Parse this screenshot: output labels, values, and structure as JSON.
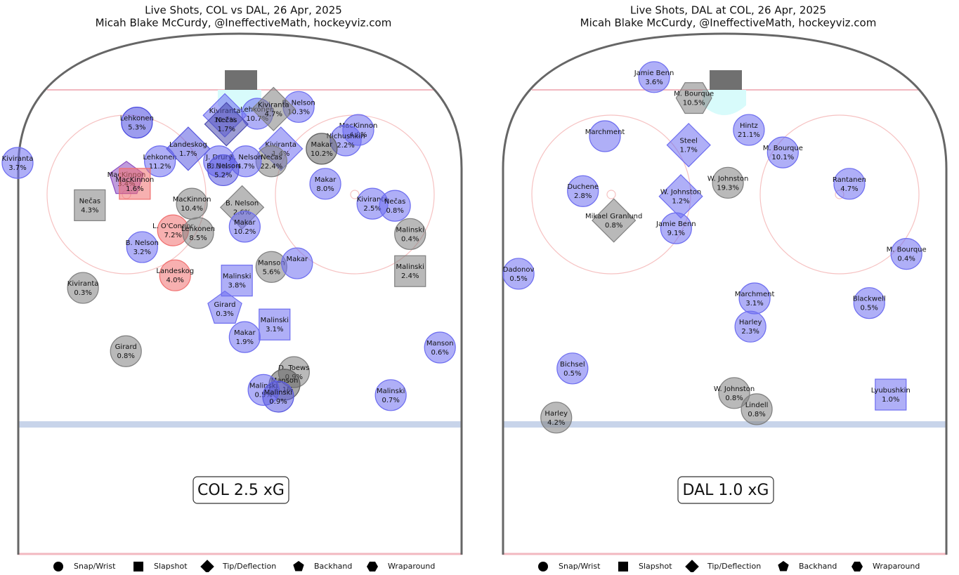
{
  "chart_data": [
    {
      "type": "scatter",
      "title": "Live Shots, COL vs DAL, 26 Apr, 2025",
      "subtitle": "Micah Blake McCurdy, @IneffectiveMath, hockeyviz.com",
      "total_label": "COL 2.5 xG",
      "legend": [
        {
          "shape": "circle",
          "label": "Snap/Wrist"
        },
        {
          "shape": "square",
          "label": "Slapshot"
        },
        {
          "shape": "diamond",
          "label": "Tip/Deflection"
        },
        {
          "shape": "pentagon",
          "label": "Backhand"
        },
        {
          "shape": "hexagon",
          "label": "Wraparound"
        }
      ],
      "shots": [
        {
          "player": "Kiviranta",
          "xg": 3.7,
          "xg_label": "3.7%",
          "x": 0,
          "y": 24.7,
          "shape": "circle",
          "color": "#6e6ef0"
        },
        {
          "player": "B. Nelson",
          "xg": 10.3,
          "xg_label": "10.3%",
          "x": 53.7,
          "y": 14.0,
          "shape": "circle",
          "color": "#6e6ef0"
        },
        {
          "player": "Lehkonen",
          "xg": 10.7,
          "xg_label": "10.7%",
          "x": 45.8,
          "y": 15.3,
          "shape": "circle",
          "color": "#6e6ef0"
        },
        {
          "player": "Kiviranta",
          "xg": 4.7,
          "xg_label": "4.7%",
          "x": 48.9,
          "y": 14.4,
          "shape": "diamond",
          "color": "#808080"
        },
        {
          "player": "Kiviranta",
          "xg": 10.2,
          "xg_label": "10.2%",
          "x": 39.6,
          "y": 15.6,
          "shape": "diamond",
          "color": "#6e6ef0"
        },
        {
          "player": "Nečas",
          "xg": 1.7,
          "xg_label": "1.7%",
          "x": 39.9,
          "y": 17.3,
          "shape": "diamond",
          "color": "#4a4ab0"
        },
        {
          "player": "MacKinnon",
          "xg": 4.0,
          "xg_label": "4.0%",
          "x": 65.1,
          "y": 18.4,
          "shape": "circle",
          "color": "#6e6ef0"
        },
        {
          "player": "Nichushkin",
          "xg": 2.2,
          "xg_label": "2.2%",
          "x": 62.7,
          "y": 20.4,
          "shape": "circle",
          "color": "#6e6ef0"
        },
        {
          "player": "Makar",
          "xg": 10.2,
          "xg_label": "10.2%",
          "x": 58.1,
          "y": 22.0,
          "shape": "circle",
          "color": "#606060"
        },
        {
          "player": "Kiviranta",
          "xg": 1.4,
          "xg_label": "1.4%",
          "x": 50.3,
          "y": 22.0,
          "shape": "diamond",
          "color": "#6e6ef0"
        },
        {
          "player": "Nečas",
          "xg": 22.4,
          "xg_label": "22.4%",
          "x": 48.5,
          "y": 24.4,
          "shape": "circle",
          "color": "#808080"
        },
        {
          "player": "B. Nelson",
          "xg": 4.7,
          "xg_label": "4.7%",
          "x": 43.6,
          "y": 24.4,
          "shape": "circle",
          "color": "#6e6ef0"
        },
        {
          "player": "J. Drury",
          "xg": 3.3,
          "xg_label": "3.3%",
          "x": 38.5,
          "y": 24.4,
          "shape": "circle",
          "color": "#6e6ef0"
        },
        {
          "player": "B. Nelson",
          "xg": 5.2,
          "xg_label": "5.2%",
          "x": 39.3,
          "y": 26.1,
          "shape": "circle",
          "color": "#5a5ae0"
        },
        {
          "player": "Lehkonen",
          "xg": 11.2,
          "xg_label": "11.2%",
          "x": 27.2,
          "y": 24.4,
          "shape": "circle",
          "color": "#6e6ef0"
        },
        {
          "player": "Landeskog",
          "xg": 1.7,
          "xg_label": "1.7%",
          "x": 32.6,
          "y": 22.0,
          "shape": "diamond",
          "color": "#5a5ae0"
        },
        {
          "player": "Lehkonen",
          "xg": 5.3,
          "xg_label": "5.3%",
          "x": 22.8,
          "y": 17.0,
          "shape": "circle",
          "color": "#4a4ae0"
        },
        {
          "player": "MacKinnon",
          "xg": 3.4,
          "xg_label": "3.4%",
          "x": 20.8,
          "y": 27.8,
          "shape": "pentagon",
          "color": "#8a4ac0"
        },
        {
          "player": "MacKinnon",
          "xg": 1.6,
          "xg_label": "1.6%",
          "x": 22.4,
          "y": 28.7,
          "shape": "square",
          "color": "#f07070"
        },
        {
          "player": "Nečas",
          "xg": 4.3,
          "xg_label": "4.3%",
          "x": 13.8,
          "y": 32.8,
          "shape": "square",
          "color": "#808080"
        },
        {
          "player": "MacKinnon",
          "xg": 10.4,
          "xg_label": "10.4%",
          "x": 33.3,
          "y": 32.5,
          "shape": "circle",
          "color": "#808080"
        },
        {
          "player": "B. Nelson",
          "xg": 2.6,
          "xg_label": "2.6%",
          "x": 42.9,
          "y": 33.2,
          "shape": "diamond",
          "color": "#808080"
        },
        {
          "player": "Makar",
          "xg": 10.2,
          "xg_label": "10.2%",
          "x": 43.4,
          "y": 36.9,
          "shape": "circle",
          "color": "#6e6ef0"
        },
        {
          "player": "L. O'Connor",
          "xg": 7.2,
          "xg_label": "7.2%",
          "x": 29.7,
          "y": 37.6,
          "shape": "circle",
          "color": "#f07070"
        },
        {
          "player": "Lehkonen",
          "xg": 8.5,
          "xg_label": "8.5%",
          "x": 34.5,
          "y": 38.1,
          "shape": "circle",
          "color": "#808080"
        },
        {
          "player": "B. Nelson",
          "xg": 3.2,
          "xg_label": "3.2%",
          "x": 23.8,
          "y": 40.8,
          "shape": "circle",
          "color": "#6e6ef0"
        },
        {
          "player": "Makar",
          "xg": 8.0,
          "xg_label": "8.0%",
          "x": 58.8,
          "y": 28.7,
          "shape": "circle",
          "color": "#6e6ef0"
        },
        {
          "player": "Kiviranta",
          "xg": 2.5,
          "xg_label": "2.5%",
          "x": 67.8,
          "y": 32.5,
          "shape": "circle",
          "color": "#6e6ef0"
        },
        {
          "player": "Nečas",
          "xg": 0.8,
          "xg_label": "0.8%",
          "x": 72.1,
          "y": 32.9,
          "shape": "circle",
          "color": "#6e6ef0"
        },
        {
          "player": "Malinski",
          "xg": 0.4,
          "xg_label": "0.4%",
          "x": 75.0,
          "y": 38.3,
          "shape": "circle",
          "color": "#808080"
        },
        {
          "player": "Malinski",
          "xg": 2.4,
          "xg_label": "2.4%",
          "x": 75.0,
          "y": 45.4,
          "shape": "square",
          "color": "#808080"
        },
        {
          "player": "Manson",
          "xg": 5.6,
          "xg_label": "5.6%",
          "x": 48.5,
          "y": 44.6,
          "shape": "circle",
          "color": "#808080"
        },
        {
          "player": "Makar",
          "xg": null,
          "xg_label": null,
          "x": 53.4,
          "y": 43.9,
          "shape": "circle",
          "color": "#6e6ef0"
        },
        {
          "player": "Landeskog",
          "xg": 4.0,
          "xg_label": "4.0%",
          "x": 30.1,
          "y": 46.2,
          "shape": "circle",
          "color": "#f07070"
        },
        {
          "player": "Kiviranta",
          "xg": 0.3,
          "xg_label": "0.3%",
          "x": 12.5,
          "y": 48.6,
          "shape": "circle",
          "color": "#808080"
        },
        {
          "player": "Malinski",
          "xg": 3.8,
          "xg_label": "3.8%",
          "x": 41.9,
          "y": 47.2,
          "shape": "square",
          "color": "#6e6ef0"
        },
        {
          "player": "Girard",
          "xg": 0.3,
          "xg_label": "0.3%",
          "x": 39.6,
          "y": 52.6,
          "shape": "pentagon",
          "color": "#6e6ef0"
        },
        {
          "player": "Malinski",
          "xg": 3.1,
          "xg_label": "3.1%",
          "x": 49.1,
          "y": 55.6,
          "shape": "square",
          "color": "#6e6ef0"
        },
        {
          "player": "Makar",
          "xg": 1.9,
          "xg_label": "1.9%",
          "x": 43.4,
          "y": 58.0,
          "shape": "circle",
          "color": "#6e6ef0"
        },
        {
          "player": "Girard",
          "xg": 0.8,
          "xg_label": "0.8%",
          "x": 20.7,
          "y": 60.7,
          "shape": "circle",
          "color": "#808080"
        },
        {
          "player": "D. Toews",
          "xg": 0.9,
          "xg_label": "0.9%",
          "x": 52.8,
          "y": 64.7,
          "shape": "circle",
          "color": "#808080"
        },
        {
          "player": "Manson",
          "xg": 0.1,
          "xg_label": "0.1%",
          "x": 51.0,
          "y": 67.1,
          "shape": "circle",
          "color": "#606060"
        },
        {
          "player": "Malinski",
          "xg": 0.5,
          "xg_label": "0.5%",
          "x": 47.0,
          "y": 68.1,
          "shape": "circle",
          "color": "#6e6ef0"
        },
        {
          "player": "Malinski",
          "xg": 0.9,
          "xg_label": "0.9%",
          "x": 49.8,
          "y": 69.4,
          "shape": "circle",
          "color": "#5a5ae0"
        },
        {
          "player": "Manson",
          "xg": 0.6,
          "xg_label": "0.6%",
          "x": 80.7,
          "y": 60.0,
          "shape": "circle",
          "color": "#6e6ef0"
        },
        {
          "player": "Malinski",
          "xg": 0.7,
          "xg_label": "0.7%",
          "x": 71.3,
          "y": 69.1,
          "shape": "circle",
          "color": "#6e6ef0"
        }
      ]
    },
    {
      "type": "scatter",
      "title": "Live Shots, DAL at COL, 26 Apr, 2025",
      "subtitle": "Micah Blake McCurdy, @IneffectiveMath, hockeyviz.com",
      "total_label": "DAL 1.0 xG",
      "legend": [
        {
          "shape": "circle",
          "label": "Snap/Wrist"
        },
        {
          "shape": "square",
          "label": "Slapshot"
        },
        {
          "shape": "diamond",
          "label": "Tip/Deflection"
        },
        {
          "shape": "pentagon",
          "label": "Backhand"
        },
        {
          "shape": "hexagon",
          "label": "Wraparound"
        }
      ],
      "shots": [
        {
          "player": "Jamie Benn",
          "xg": 3.6,
          "xg_label": "3.6%",
          "x": 29.0,
          "y": 8.3,
          "shape": "circle",
          "color": "#6e6ef0"
        },
        {
          "player": "M. Bourque",
          "xg": 10.5,
          "xg_label": "10.5%",
          "x": 36.6,
          "y": 12.3,
          "shape": "hexagon",
          "color": "#808080"
        },
        {
          "player": "Marchment",
          "xg": null,
          "xg_label": null,
          "x": 19.6,
          "y": 19.6,
          "shape": "circle",
          "color": "#6e6ef0"
        },
        {
          "player": "Steel",
          "xg": 1.7,
          "xg_label": "1.7%",
          "x": 35.6,
          "y": 21.3,
          "shape": "diamond",
          "color": "#6e6ef0"
        },
        {
          "player": "Hintz",
          "xg": 21.1,
          "xg_label": "21.1%",
          "x": 47.1,
          "y": 18.4,
          "shape": "circle",
          "color": "#6e6ef0"
        },
        {
          "player": "M. Bourque",
          "xg": 10.1,
          "xg_label": "10.1%",
          "x": 53.6,
          "y": 22.7,
          "shape": "circle",
          "color": "#6e6ef0"
        },
        {
          "player": "W. Johnston",
          "xg": 19.3,
          "xg_label": "19.3%",
          "x": 43.1,
          "y": 28.5,
          "shape": "circle",
          "color": "#808080"
        },
        {
          "player": "Duchene",
          "xg": 2.8,
          "xg_label": "2.8%",
          "x": 15.4,
          "y": 30.1,
          "shape": "circle",
          "color": "#6e6ef0"
        },
        {
          "player": "W. Johnston",
          "xg": 1.2,
          "xg_label": "1.2%",
          "x": 34.1,
          "y": 31.1,
          "shape": "diamond",
          "color": "#6e6ef0"
        },
        {
          "player": "Rantanen",
          "xg": 4.7,
          "xg_label": "4.7%",
          "x": 66.3,
          "y": 28.7,
          "shape": "circle",
          "color": "#6e6ef0"
        },
        {
          "player": "Mikael Granlund",
          "xg": 0.8,
          "xg_label": "0.8%",
          "x": 21.3,
          "y": 35.7,
          "shape": "diamond",
          "color": "#808080"
        },
        {
          "player": "Jamie Benn",
          "xg": 9.1,
          "xg_label": "9.1%",
          "x": 33.2,
          "y": 37.2,
          "shape": "circle",
          "color": "#6e6ef0"
        },
        {
          "player": "M. Bourque",
          "xg": 0.4,
          "xg_label": "0.4%",
          "x": 77.2,
          "y": 42.1,
          "shape": "circle",
          "color": "#6e6ef0"
        },
        {
          "player": "Dadonov",
          "xg": 0.5,
          "xg_label": "0.5%",
          "x": 3.1,
          "y": 45.9,
          "shape": "circle",
          "color": "#6e6ef0"
        },
        {
          "player": "Marchment",
          "xg": 3.1,
          "xg_label": "3.1%",
          "x": 48.2,
          "y": 50.6,
          "shape": "circle",
          "color": "#6e6ef0"
        },
        {
          "player": "Harley",
          "xg": 2.3,
          "xg_label": "2.3%",
          "x": 47.4,
          "y": 56.0,
          "shape": "circle",
          "color": "#6e6ef0"
        },
        {
          "player": "Blackwell",
          "xg": 0.5,
          "xg_label": "0.5%",
          "x": 70.1,
          "y": 51.5,
          "shape": "circle",
          "color": "#6e6ef0"
        },
        {
          "player": "Bichsel",
          "xg": 0.5,
          "xg_label": "0.5%",
          "x": 13.4,
          "y": 64.0,
          "shape": "circle",
          "color": "#6e6ef0"
        },
        {
          "player": "W. Johnston",
          "xg": 0.8,
          "xg_label": "0.8%",
          "x": 44.3,
          "y": 68.7,
          "shape": "circle",
          "color": "#808080"
        },
        {
          "player": "Lindell",
          "xg": 0.8,
          "xg_label": "0.8%",
          "x": 48.6,
          "y": 71.8,
          "shape": "circle",
          "color": "#808080"
        },
        {
          "player": "Harley",
          "xg": 4.2,
          "xg_label": "4.2%",
          "x": 10.3,
          "y": 73.4,
          "shape": "circle",
          "color": "#808080"
        },
        {
          "player": "Lyubushkin",
          "xg": 1.0,
          "xg_label": "1.0%",
          "x": 74.2,
          "y": 69.0,
          "shape": "square",
          "color": "#6e6ef0"
        }
      ]
    }
  ]
}
